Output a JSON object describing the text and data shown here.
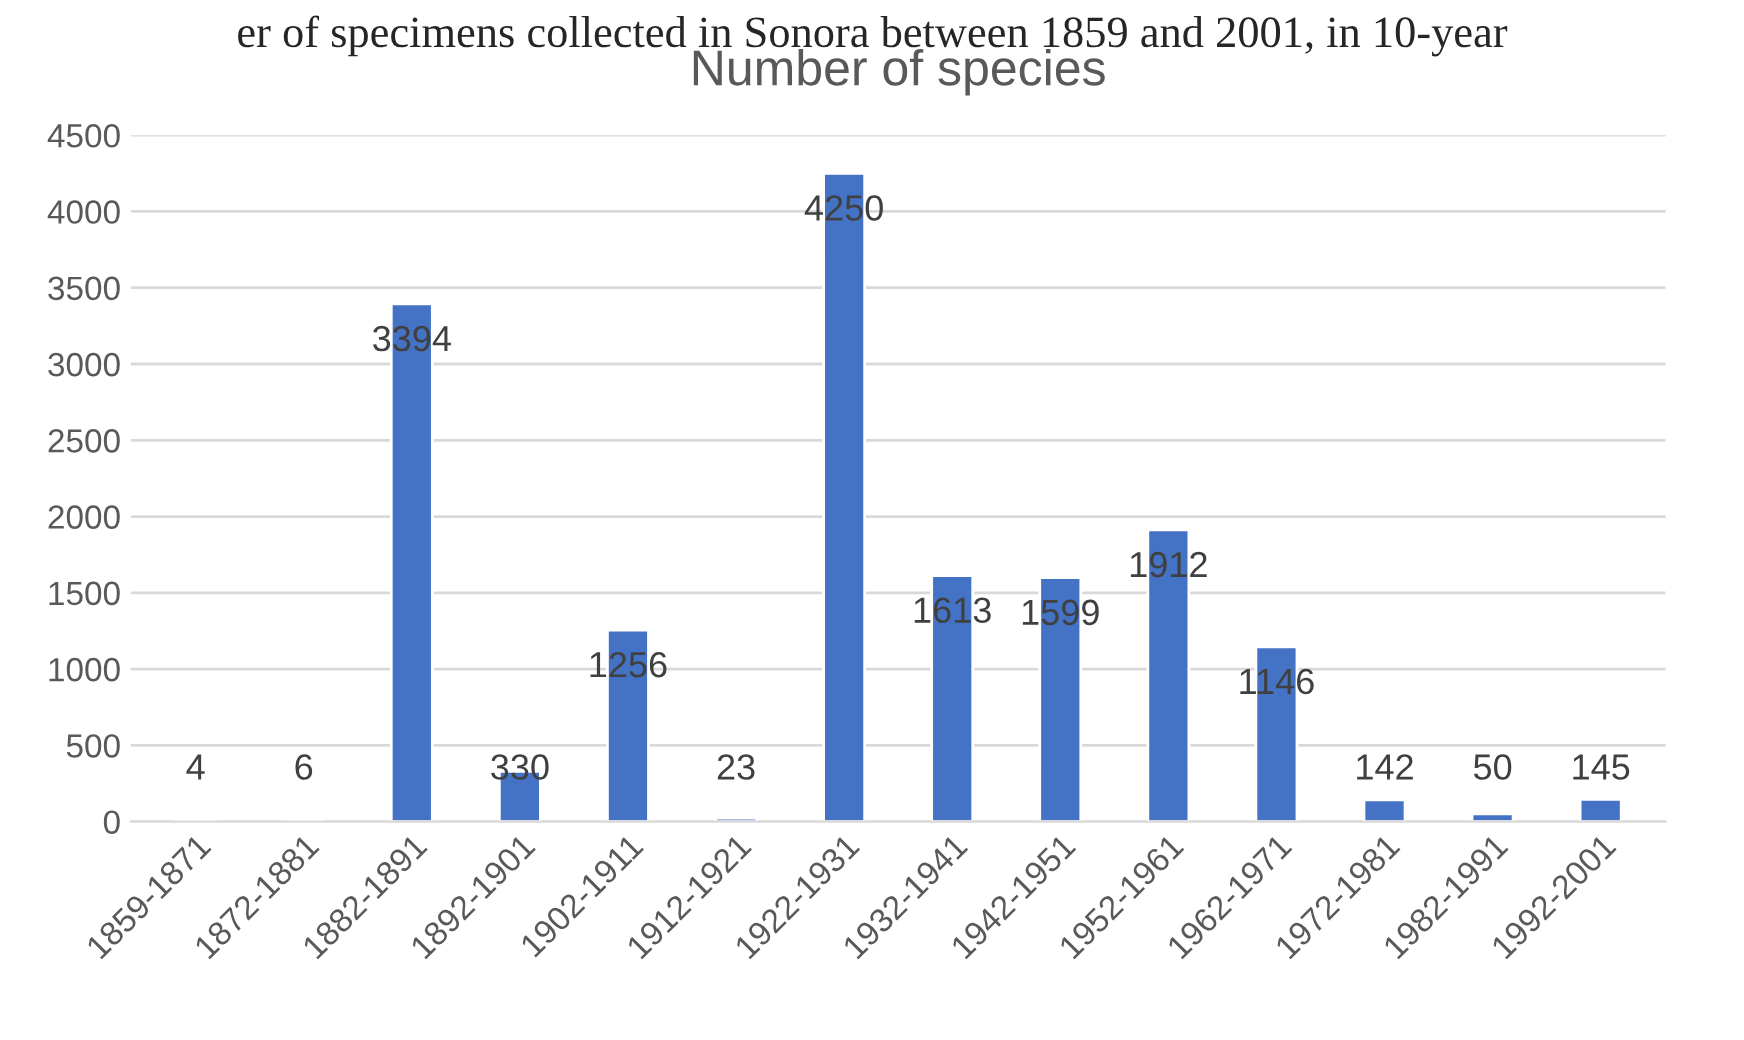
{
  "chart_data": {
    "type": "bar",
    "title": "Number of species",
    "annotations": [
      "er of specimens collected in Sonora between 1859 and 2001, in 10-year"
    ],
    "categories": [
      "1859-1871",
      "1872-1881",
      "1882-1891",
      "1892-1901",
      "1902-1911",
      "1912-1921",
      "1922-1931",
      "1932-1941",
      "1942-1951",
      "1952-1961",
      "1962-1971",
      "1972-1981",
      "1982-1991",
      "1992-2001"
    ],
    "values": [
      4,
      6,
      3394,
      330,
      1256,
      23,
      4250,
      1613,
      1599,
      1912,
      1146,
      142,
      50,
      145
    ],
    "color": "#4472c4",
    "ylim": [
      0,
      4500
    ],
    "yticks": [
      0,
      500,
      1000,
      1500,
      2000,
      2500,
      3000,
      3500,
      4000,
      4500
    ],
    "grid": "y",
    "data_labels": true
  }
}
